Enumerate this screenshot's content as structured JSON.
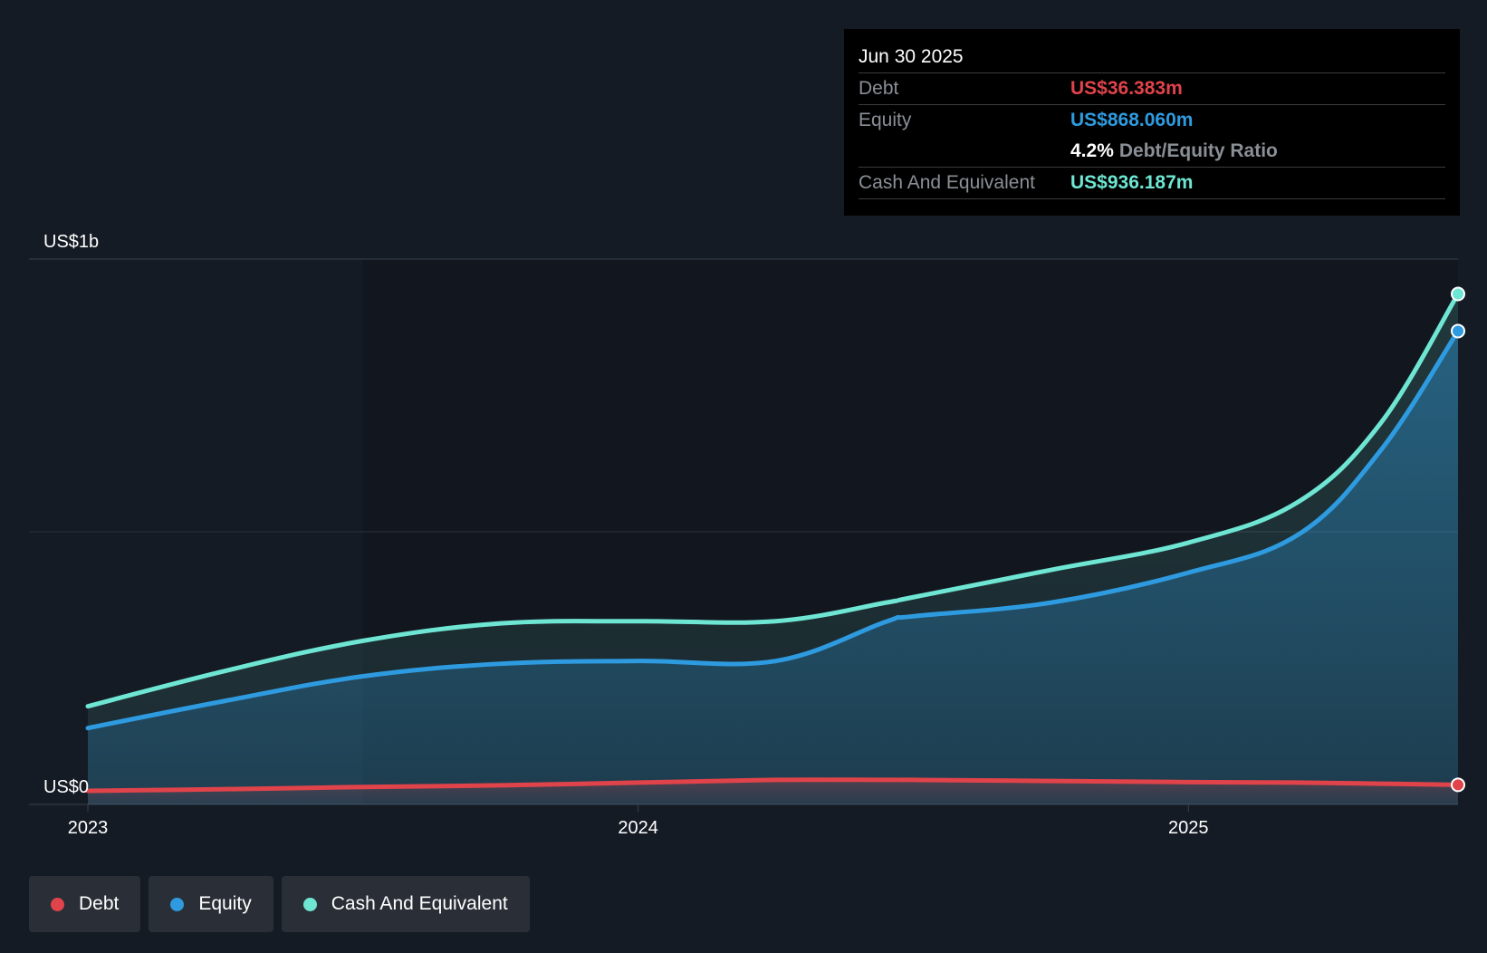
{
  "colors": {
    "background": "#151b24",
    "plot_bg": "#10141b",
    "debt": "#e0434a",
    "equity": "#2e9be0",
    "cash": "#6ee6d3",
    "grid": "#3a414b",
    "axis_text": "#ffffff"
  },
  "tooltip": {
    "date": "Jun 30 2025",
    "debt_label": "Debt",
    "debt_value": "US$36.383m",
    "equity_label": "Equity",
    "equity_value": "US$868.060m",
    "ratio_value": "4.2%",
    "ratio_label": "Debt/Equity Ratio",
    "cash_label": "Cash And Equivalent",
    "cash_value": "US$936.187m"
  },
  "legend": {
    "debt": "Debt",
    "equity": "Equity",
    "cash": "Cash And Equivalent"
  },
  "chart_data": {
    "type": "area",
    "title": "",
    "xlabel": "",
    "ylabel": "",
    "ylim": [
      0,
      1000
    ],
    "xlim": [
      2023.0,
      2025.49
    ],
    "y_ticks": [
      {
        "value": 0,
        "label": "US$0"
      },
      {
        "value": 1000,
        "label": "US$1b"
      }
    ],
    "x_ticks": [
      {
        "value": 2023.0,
        "label": "2023"
      },
      {
        "value": 2024.0,
        "label": "2024"
      },
      {
        "value": 2025.0,
        "label": "2025"
      }
    ],
    "x": [
      2023.0,
      2023.25,
      2023.5,
      2023.75,
      2024.0,
      2024.25,
      2024.45,
      2024.5,
      2024.75,
      2025.0,
      2025.2,
      2025.35,
      2025.49
    ],
    "series": [
      {
        "name": "Cash And Equivalent",
        "color": "#6ee6d3",
        "values": [
          180,
          245,
          300,
          332,
          336,
          336,
          370,
          380,
          430,
          480,
          555,
          700,
          936
        ]
      },
      {
        "name": "Equity",
        "color": "#2e9be0",
        "values": [
          140,
          190,
          235,
          258,
          263,
          263,
          335,
          345,
          370,
          425,
          495,
          650,
          868
        ]
      },
      {
        "name": "Debt",
        "color": "#e0434a",
        "values": [
          25,
          28,
          32,
          35,
          40,
          45,
          45,
          45,
          43,
          41,
          40,
          38,
          36
        ]
      }
    ]
  }
}
